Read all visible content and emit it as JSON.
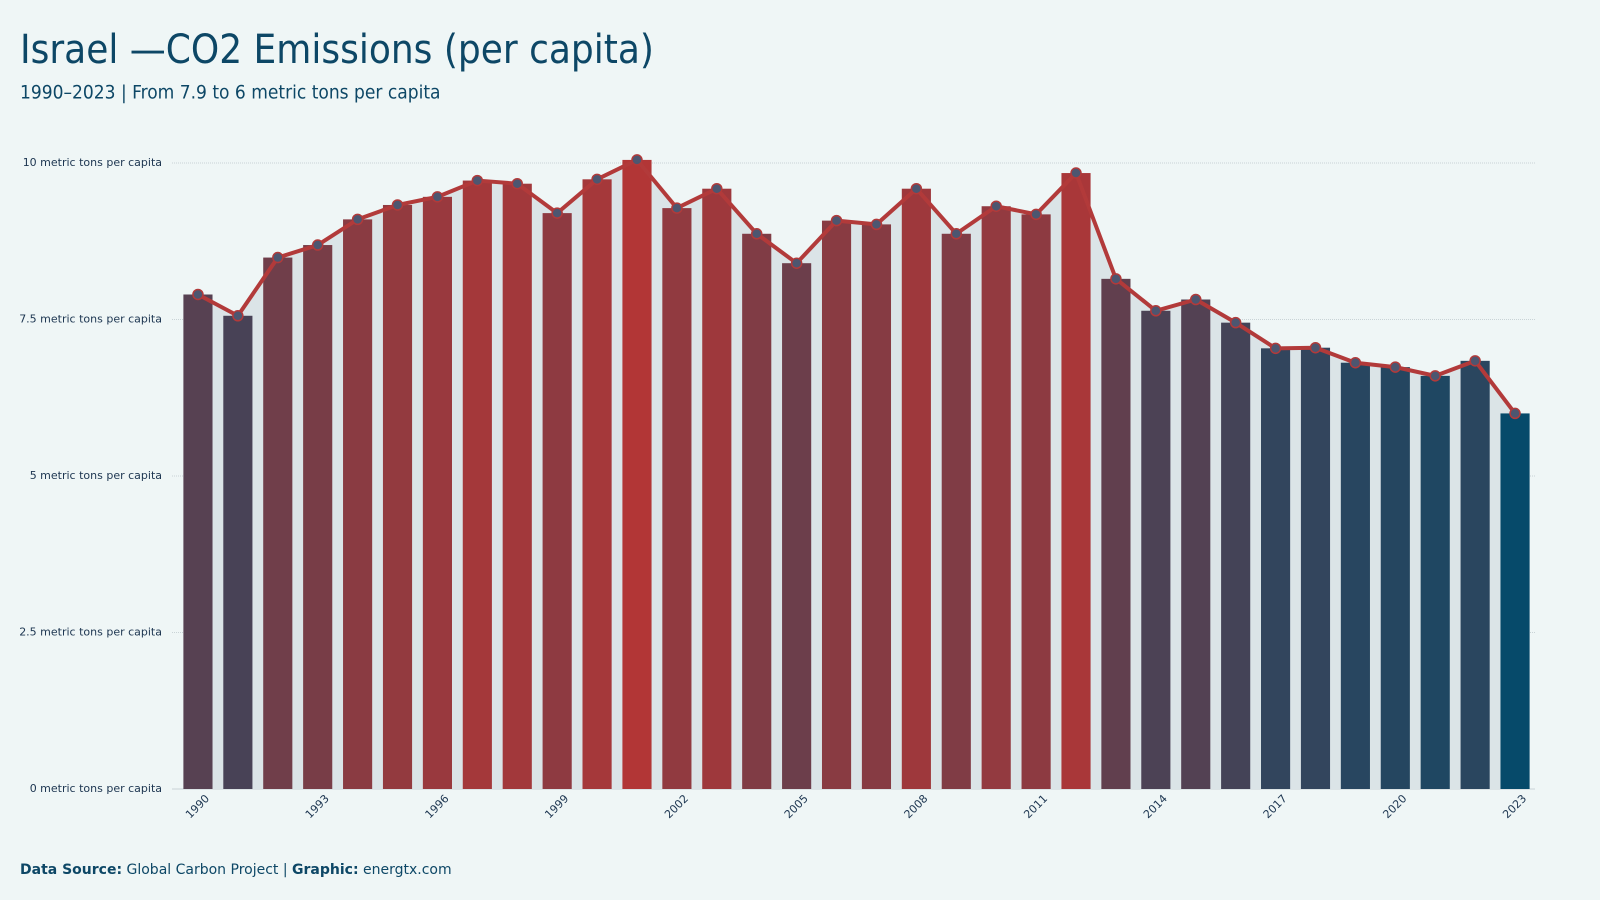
{
  "chart_data": {
    "type": "bar_line",
    "title": "Israel —CO2 Emissions (per capita)",
    "subtitle": "1990–2023 | From 7.9 to 6 metric tons per capita",
    "categories": [
      "1990",
      null,
      null,
      "1993",
      null,
      null,
      "1996",
      null,
      null,
      "1999",
      null,
      null,
      "2002",
      null,
      null,
      "2005",
      null,
      null,
      "2008",
      null,
      null,
      "2011",
      null,
      null,
      "2014",
      null,
      null,
      "2017",
      null,
      null,
      "2020",
      null,
      null,
      "2023"
    ],
    "values": [
      7.9,
      7.56,
      8.49,
      8.69,
      9.1,
      9.33,
      9.46,
      9.72,
      9.67,
      9.2,
      9.74,
      10.05,
      9.28,
      9.59,
      8.87,
      8.4,
      9.08,
      9.02,
      9.59,
      8.87,
      9.31,
      9.18,
      9.84,
      8.15,
      7.64,
      7.82,
      7.45,
      7.04,
      7.05,
      6.81,
      6.74,
      6.6,
      6.84,
      6
    ],
    "bar_color_low": "#064a6a",
    "bar_color_high": "#b23636",
    "line_color": "#b23a3a",
    "marker_color": "#4d5670",
    "area_color": "#dbe4e7",
    "ylim": [
      0,
      10.4
    ],
    "yticks": [
      {
        "value": 0,
        "label": "0 metric tons per capita"
      },
      {
        "value": 2.5,
        "label": "2.5 metric tons per capita"
      },
      {
        "value": 5,
        "label": "5 metric tons per capita"
      },
      {
        "value": 7.5,
        "label": "7.5 metric tons per capita"
      },
      {
        "value": 10,
        "label": "10 metric tons per capita"
      }
    ],
    "grid": true,
    "footer": {
      "source_label": "Data Source:",
      "source": "Global Carbon Project",
      "separator": "|",
      "graphic_label": "Graphic:",
      "graphic": "energtx.com"
    }
  }
}
